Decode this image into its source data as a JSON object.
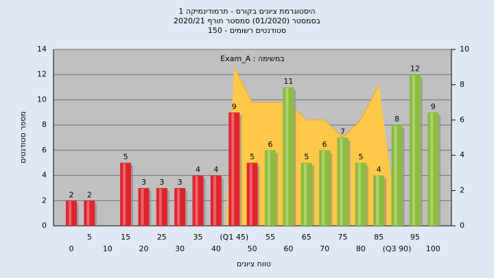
{
  "chart_data": {
    "type": "bar",
    "title": [
      "היסטוגרמת ציונים בקורס - תרמודינמיקה 1",
      "בסמסטר  (01/2020)  סמסטר חורף 2020/21",
      "סטודנטים רשומים - 150"
    ],
    "annotation": "Exam_A : במשימה",
    "x_label": "טווח ציונים",
    "y_label": "מספר סטודנטים",
    "categories": [
      "0",
      "5",
      "10",
      "15",
      "20",
      "25",
      "30",
      "35",
      "40",
      "(Q1 45)",
      "50",
      "55",
      "60",
      "65",
      "70",
      "75",
      "80",
      "85",
      "(Q3 90)",
      "95",
      "100"
    ],
    "values": [
      2,
      2,
      null,
      5,
      3,
      3,
      3,
      4,
      4,
      9,
      5,
      6,
      11,
      5,
      6,
      7,
      5,
      4,
      8,
      12,
      9
    ],
    "colors": [
      "#e0242c",
      "#e0242c",
      "#e0242c",
      "#e0242c",
      "#e0242c",
      "#e0242c",
      "#e0242c",
      "#e0242c",
      "#e0242c",
      "#e0242c",
      "#e0242c",
      "#8cbc3c",
      "#8cbc3c",
      "#8cbc3c",
      "#8cbc3c",
      "#8cbc3c",
      "#8cbc3c",
      "#8cbc3c",
      "#8cbc3c",
      "#8cbc3c",
      "#8cbc3c"
    ],
    "area": {
      "axis": "y2",
      "color": "#ffc848",
      "values": [
        null,
        null,
        null,
        null,
        null,
        null,
        null,
        null,
        null,
        9,
        7,
        7,
        7,
        6,
        6,
        5,
        6,
        8,
        null,
        null,
        null
      ]
    },
    "ylim": [
      0,
      14
    ],
    "yticks": [
      0,
      2,
      4,
      6,
      8,
      10,
      12,
      14
    ],
    "y2lim": [
      0,
      10
    ],
    "y2ticks": [
      0,
      2,
      4,
      6,
      8,
      10
    ],
    "grid": true
  }
}
